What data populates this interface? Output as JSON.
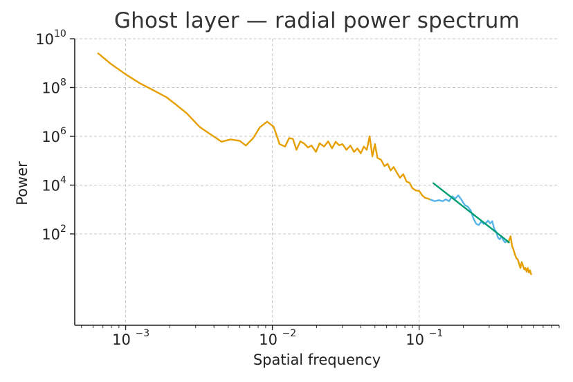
{
  "chart_data": {
    "type": "line",
    "title": "Ghost layer — radial power spectrum",
    "xlabel": "Spatial frequency",
    "ylabel": "Power",
    "xscale": "log",
    "yscale": "log",
    "xlim": [
      0.00045,
      0.9
    ],
    "ylim": [
      0.018,
      10000000000
    ],
    "grid": true,
    "x_ticks": [
      {
        "base": "10",
        "exp": "−3",
        "value": 0.001
      },
      {
        "base": "10",
        "exp": "−2",
        "value": 0.01
      },
      {
        "base": "10",
        "exp": "−1",
        "value": 0.1
      }
    ],
    "y_ticks": [
      {
        "base": "10",
        "exp": "2",
        "value": 100
      },
      {
        "base": "10",
        "exp": "4",
        "value": 10000
      },
      {
        "base": "10",
        "exp": "6",
        "value": 1000000
      },
      {
        "base": "10",
        "exp": "8",
        "value": 100000000
      },
      {
        "base": "10",
        "exp": "10",
        "value": 10000000000
      }
    ],
    "series": [
      {
        "color": "#e69f00",
        "x": [
          0.00065,
          0.0008,
          0.001,
          0.00125,
          0.0015,
          0.0019,
          0.0022,
          0.0026,
          0.0032,
          0.0038,
          0.0045,
          0.0052,
          0.006,
          0.0066,
          0.0074,
          0.0082,
          0.0092,
          0.0102,
          0.0112,
          0.0122,
          0.013,
          0.0138,
          0.0146,
          0.0155,
          0.0165,
          0.0175,
          0.0185,
          0.0198,
          0.021,
          0.0225,
          0.024,
          0.0255,
          0.027,
          0.0285,
          0.03,
          0.032,
          0.034,
          0.036,
          0.038,
          0.04,
          0.042,
          0.044,
          0.046,
          0.048,
          0.05,
          0.052,
          0.055,
          0.058,
          0.061,
          0.064,
          0.067,
          0.07,
          0.074,
          0.078,
          0.082,
          0.086,
          0.09,
          0.095,
          0.1,
          0.105,
          0.11,
          0.115,
          0.12
        ],
        "y": [
          2500000000,
          900000000,
          350000000,
          150000000,
          85000000,
          40000000,
          20000000,
          9000000,
          2400000,
          1200000,
          600000,
          750000,
          650000,
          420000,
          850000,
          2300000,
          4000000,
          2500000,
          480000,
          380000,
          850000,
          780000,
          280000,
          620000,
          500000,
          350000,
          420000,
          230000,
          520000,
          380000,
          620000,
          320000,
          600000,
          430000,
          480000,
          280000,
          420000,
          230000,
          320000,
          200000,
          380000,
          280000,
          1000000,
          150000,
          480000,
          130000,
          110000,
          60000,
          75000,
          40000,
          55000,
          35000,
          20000,
          28000,
          14000,
          12500,
          7500,
          6000,
          5800,
          3800,
          3000,
          2800,
          2500
        ]
      },
      {
        "color": "#56b4e9",
        "x": [
          0.12,
          0.128,
          0.136,
          0.145,
          0.152,
          0.16,
          0.168,
          0.176,
          0.185,
          0.195,
          0.205,
          0.215,
          0.225,
          0.235,
          0.245,
          0.255,
          0.265,
          0.275,
          0.285,
          0.295,
          0.305,
          0.315,
          0.325,
          0.335,
          0.345,
          0.355,
          0.365,
          0.375,
          0.385,
          0.395,
          0.405
        ],
        "y": [
          2500,
          2200,
          2400,
          2200,
          2600,
          2200,
          3500,
          2800,
          3800,
          2400,
          1500,
          1300,
          900,
          420,
          260,
          230,
          320,
          260,
          280,
          350,
          270,
          330,
          160,
          120,
          70,
          60,
          80,
          55,
          45,
          50,
          45
        ]
      },
      {
        "color": "#e69f00",
        "x": [
          0.405,
          0.42,
          0.43,
          0.44,
          0.45,
          0.46,
          0.47,
          0.48,
          0.49,
          0.5,
          0.51,
          0.52,
          0.53,
          0.54,
          0.55,
          0.56,
          0.57,
          0.58
        ],
        "y": [
          45,
          80,
          32,
          22,
          14,
          10,
          9,
          6,
          4,
          7,
          5,
          3.5,
          4,
          2.8,
          4,
          2.6,
          3.2,
          2.2
        ]
      },
      {
        "color": "#009e73",
        "x": [
          0.125,
          0.41
        ],
        "y": [
          12000,
          45
        ]
      }
    ]
  }
}
